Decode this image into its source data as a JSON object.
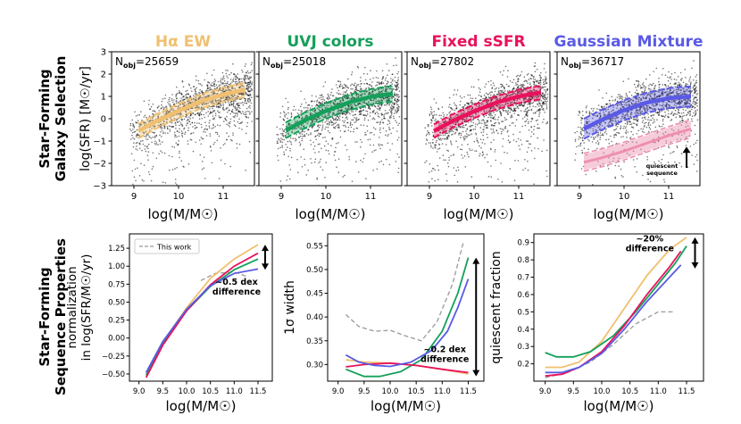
{
  "figure": {
    "row1_label_line1": "Star-Forming",
    "row1_label_line2": "Galaxy Selection",
    "row2_label_line1": "Star-Forming",
    "row2_label_line2": "Sequence Properties"
  },
  "colors": {
    "ha": "#f0c070",
    "uvj": "#14a05a",
    "ssfr": "#e8125c",
    "gmm": "#5a5ae6",
    "quiescent": "#ee8fae",
    "this_work": "#999999"
  },
  "chart_data": [
    {
      "type": "scatter",
      "title": "Hα EW",
      "annotation": "N_obj=25659",
      "nobj_prefix": "N",
      "nobj_sub": "obj",
      "nobj_value": "=25659",
      "xlabel": "log(M/M☉)",
      "ylabel": "log(SFR) [M☉/yr]",
      "xlim": [
        8.5,
        11.7
      ],
      "ylim": [
        -3,
        3
      ],
      "xticks": [
        9,
        10,
        11
      ],
      "yticks": [
        -3,
        -2,
        -1,
        0,
        1,
        2,
        3
      ],
      "color_key": "ha",
      "sequence": {
        "x": [
          9.1,
          9.5,
          10.0,
          10.5,
          11.0,
          11.5
        ],
        "y": [
          -0.55,
          -0.12,
          0.35,
          0.78,
          1.08,
          1.3
        ]
      },
      "scatter_dex": 0.32
    },
    {
      "type": "scatter",
      "title": "UVJ colors",
      "annotation": "N_obj=25018",
      "nobj_prefix": "N",
      "nobj_sub": "obj",
      "nobj_value": "=25018",
      "xlabel": "log(M/M☉)",
      "xlim": [
        8.5,
        11.7
      ],
      "ylim": [
        -3,
        3
      ],
      "xticks": [
        9,
        10,
        11
      ],
      "color_key": "uvj",
      "sequence": {
        "x": [
          9.1,
          9.5,
          10.0,
          10.5,
          11.0,
          11.5
        ],
        "y": [
          -0.52,
          -0.1,
          0.35,
          0.72,
          0.98,
          1.12
        ]
      },
      "scatter_dex": 0.35
    },
    {
      "type": "scatter",
      "title": "Fixed sSFR",
      "annotation": "N_obj=27802",
      "nobj_prefix": "N",
      "nobj_sub": "obj",
      "nobj_value": "=27802",
      "xlabel": "log(M/M☉)",
      "xlim": [
        8.5,
        11.7
      ],
      "ylim": [
        -3,
        3
      ],
      "xticks": [
        9,
        10,
        11
      ],
      "color_key": "ssfr",
      "sequence": {
        "x": [
          9.1,
          9.5,
          10.0,
          10.5,
          11.0,
          11.5
        ],
        "y": [
          -0.55,
          -0.12,
          0.33,
          0.72,
          1.0,
          1.18
        ]
      },
      "scatter_dex": 0.3
    },
    {
      "type": "scatter",
      "title": "Gaussian Mixture",
      "annotation": "N_obj=36717",
      "nobj_prefix": "N",
      "nobj_sub": "obj",
      "nobj_value": "=36717",
      "xlabel": "log(M/M☉)",
      "xlim": [
        8.5,
        11.7
      ],
      "ylim": [
        -3,
        3
      ],
      "xticks": [
        9,
        10,
        11
      ],
      "color_key": "gmm",
      "sequence": {
        "x": [
          9.1,
          9.5,
          10.0,
          10.5,
          11.0,
          11.5
        ],
        "y": [
          -0.45,
          -0.05,
          0.38,
          0.72,
          0.92,
          1.0
        ]
      },
      "scatter_dex": 0.45,
      "quiescent": {
        "x": [
          9.1,
          9.5,
          10.0,
          10.5,
          11.0,
          11.5
        ],
        "y": [
          -1.95,
          -1.75,
          -1.45,
          -1.1,
          -0.75,
          -0.45
        ],
        "label_line1": "quiescent",
        "label_line2": "sequence"
      }
    },
    {
      "type": "line",
      "ylabel_line1": "normalization",
      "ylabel_line2": "in log(SFR/M☉/yr)",
      "xlabel": "log(M/M☉)",
      "xlim": [
        8.8,
        11.8
      ],
      "ylim": [
        -0.6,
        1.45
      ],
      "xticks": [
        9.0,
        9.5,
        10.0,
        10.5,
        11.0,
        11.5
      ],
      "xtick_labels": [
        "9.0",
        "9.5",
        "10.0",
        "10.5",
        "11.0",
        "11.5"
      ],
      "yticks": [
        -0.5,
        -0.25,
        0.0,
        0.25,
        0.5,
        0.75,
        1.0,
        1.25
      ],
      "ytick_labels": [
        "−0.50",
        "−0.25",
        "0.00",
        "0.25",
        "0.50",
        "0.75",
        "1.00",
        "1.25"
      ],
      "legend": "This work",
      "annotation_line1": "~0.5 dex",
      "annotation_line2": "difference",
      "arrow_range": [
        0.95,
        1.3
      ],
      "series": [
        {
          "name": "This work",
          "color_key": "this_work",
          "dashed": true,
          "x": [
            10.3,
            10.6,
            11.0,
            11.3
          ],
          "y": [
            0.8,
            0.9,
            0.92,
            0.85
          ]
        },
        {
          "name": "Hα EW",
          "color_key": "ha",
          "x": [
            9.15,
            9.5,
            10.0,
            10.5,
            11.0,
            11.5
          ],
          "y": [
            -0.5,
            -0.06,
            0.42,
            0.83,
            1.1,
            1.3
          ]
        },
        {
          "name": "UVJ colors",
          "color_key": "uvj",
          "x": [
            9.15,
            9.5,
            10.0,
            10.5,
            11.0,
            11.5
          ],
          "y": [
            -0.52,
            -0.08,
            0.38,
            0.72,
            0.95,
            1.1
          ]
        },
        {
          "name": "Fixed sSFR",
          "color_key": "ssfr",
          "x": [
            9.15,
            9.5,
            10.0,
            10.5,
            11.0,
            11.5
          ],
          "y": [
            -0.55,
            -0.1,
            0.38,
            0.74,
            1.0,
            1.18
          ]
        },
        {
          "name": "Gaussian Mixture",
          "color_key": "gmm",
          "x": [
            9.15,
            9.5,
            10.0,
            10.5,
            11.0,
            11.5
          ],
          "y": [
            -0.48,
            -0.05,
            0.4,
            0.73,
            0.9,
            0.96
          ]
        }
      ]
    },
    {
      "type": "line",
      "ylabel": "1σ width",
      "xlabel": "log(M/M☉)",
      "xlim": [
        8.8,
        11.8
      ],
      "ylim": [
        0.265,
        0.575
      ],
      "xticks": [
        9.0,
        9.5,
        10.0,
        10.5,
        11.0,
        11.5
      ],
      "xtick_labels": [
        "9.0",
        "9.5",
        "10.0",
        "10.5",
        "11.0",
        "11.5"
      ],
      "yticks": [
        0.3,
        0.35,
        0.4,
        0.45,
        0.5,
        0.55
      ],
      "ytick_labels": [
        "0.30",
        "0.35",
        "0.40",
        "0.45",
        "0.50",
        "0.55"
      ],
      "annotation_line1": "~0.2 dex",
      "annotation_line2": "difference",
      "arrow_range": [
        0.275,
        0.525
      ],
      "series": [
        {
          "name": "This work",
          "color_key": "this_work",
          "dashed": true,
          "x": [
            9.15,
            9.4,
            9.7,
            10.0,
            10.3,
            10.6,
            10.9,
            11.2,
            11.4
          ],
          "y": [
            0.405,
            0.38,
            0.37,
            0.372,
            0.36,
            0.35,
            0.39,
            0.47,
            0.555
          ]
        },
        {
          "name": "Hα EW",
          "color_key": "ha",
          "x": [
            9.15,
            9.5,
            10.0,
            10.5,
            11.0,
            11.5
          ],
          "y": [
            0.31,
            0.305,
            0.303,
            0.298,
            0.29,
            0.28
          ]
        },
        {
          "name": "UVJ colors",
          "color_key": "uvj",
          "x": [
            9.15,
            9.5,
            9.8,
            10.2,
            10.6,
            11.0,
            11.3,
            11.5
          ],
          "y": [
            0.29,
            0.275,
            0.275,
            0.285,
            0.31,
            0.37,
            0.45,
            0.525
          ]
        },
        {
          "name": "Fixed sSFR",
          "color_key": "ssfr",
          "x": [
            9.15,
            9.5,
            10.0,
            10.5,
            11.0,
            11.5
          ],
          "y": [
            0.295,
            0.3,
            0.303,
            0.298,
            0.29,
            0.283
          ]
        },
        {
          "name": "Gaussian Mixture",
          "color_key": "gmm",
          "x": [
            9.15,
            9.4,
            9.7,
            10.0,
            10.4,
            10.8,
            11.1,
            11.3,
            11.5
          ],
          "y": [
            0.32,
            0.305,
            0.298,
            0.296,
            0.305,
            0.33,
            0.37,
            0.42,
            0.48
          ]
        }
      ]
    },
    {
      "type": "line",
      "ylabel": "quiescent fraction",
      "xlabel": "log(M/M☉)",
      "xlim": [
        8.8,
        11.8
      ],
      "ylim": [
        0.1,
        0.95
      ],
      "xticks": [
        9.0,
        9.5,
        10.0,
        10.5,
        11.0,
        11.5
      ],
      "xtick_labels": [
        "9.0",
        "9.5",
        "10.0",
        "10.5",
        "11.0",
        "11.5"
      ],
      "yticks": [
        0.2,
        0.3,
        0.4,
        0.5,
        0.6,
        0.7,
        0.8,
        0.9
      ],
      "ytick_labels": [
        "0.2",
        "0.3",
        "0.4",
        "0.5",
        "0.6",
        "0.7",
        "0.8",
        "0.9"
      ],
      "annotation_line1": "~20%",
      "annotation_line2": "difference",
      "arrow_range": [
        0.75,
        0.93
      ],
      "series": [
        {
          "name": "This work",
          "color_key": "this_work",
          "dashed": true,
          "x": [
            9.0,
            9.4,
            9.8,
            10.2,
            10.6,
            11.0,
            11.3
          ],
          "y": [
            0.12,
            0.15,
            0.21,
            0.31,
            0.43,
            0.5,
            0.5
          ]
        },
        {
          "name": "Hα EW",
          "color_key": "ha",
          "x": [
            9.0,
            9.3,
            9.6,
            10.0,
            10.4,
            10.8,
            11.2,
            11.5
          ],
          "y": [
            0.18,
            0.18,
            0.21,
            0.33,
            0.52,
            0.71,
            0.86,
            0.93
          ]
        },
        {
          "name": "UVJ colors",
          "color_key": "uvj",
          "x": [
            9.0,
            9.2,
            9.5,
            9.8,
            10.2,
            10.6,
            11.0,
            11.3,
            11.5
          ],
          "y": [
            0.265,
            0.24,
            0.24,
            0.27,
            0.36,
            0.5,
            0.66,
            0.78,
            0.88
          ]
        },
        {
          "name": "Fixed sSFR",
          "color_key": "ssfr",
          "x": [
            9.0,
            9.3,
            9.6,
            10.0,
            10.4,
            10.8,
            11.2,
            11.4
          ],
          "y": [
            0.13,
            0.14,
            0.18,
            0.27,
            0.42,
            0.6,
            0.76,
            0.85
          ]
        },
        {
          "name": "Gaussian Mixture",
          "color_key": "gmm",
          "x": [
            9.0,
            9.3,
            9.6,
            10.0,
            10.4,
            10.8,
            11.2,
            11.4
          ],
          "y": [
            0.15,
            0.15,
            0.18,
            0.26,
            0.4,
            0.56,
            0.7,
            0.77
          ]
        }
      ]
    }
  ]
}
